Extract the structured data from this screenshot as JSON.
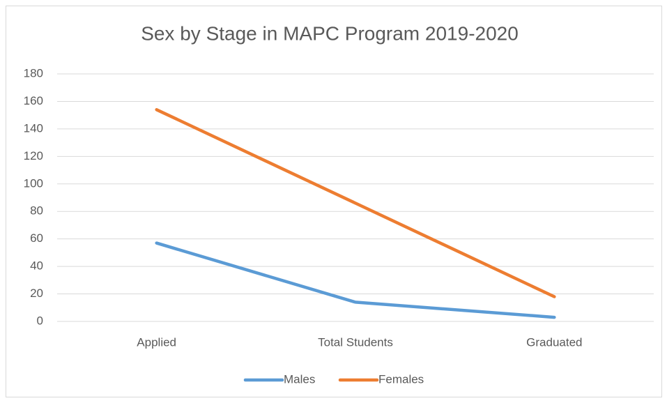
{
  "chart_data": {
    "type": "line",
    "title": "Sex by Stage in MAPC Program 2019-2020",
    "categories": [
      "Applied",
      "Total Students",
      "Graduated"
    ],
    "series": [
      {
        "name": "Males",
        "color": "#5b9bd5",
        "values": [
          57,
          14,
          3
        ]
      },
      {
        "name": "Females",
        "color": "#ed7d31",
        "values": [
          154,
          86,
          18
        ]
      }
    ],
    "ylim": [
      0,
      180
    ],
    "yticks": [
      0,
      20,
      40,
      60,
      80,
      100,
      120,
      140,
      160,
      180
    ],
    "grid": true,
    "legend": "bottom"
  }
}
